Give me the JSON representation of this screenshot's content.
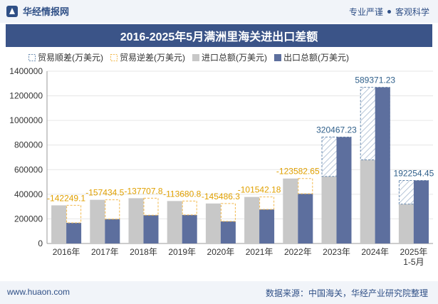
{
  "header": {
    "brand": "华经情报网",
    "tag1": "专业严谨",
    "tag2": "客观科学"
  },
  "colors": {
    "import": "#c8c8c8",
    "export": "#5d6f9e",
    "surplus_border": "#6a8bb0",
    "deficit_border": "#f2b84b",
    "title_bg": "#3b5488"
  },
  "footer": {
    "website": "www.huaon.com",
    "source": "数据来源：中国海关，华经产业研究院整理"
  },
  "chart_data": {
    "type": "bar",
    "title": "2016-2025年5月满洲里海关进出口差额",
    "categories": [
      "2016年",
      "2017年",
      "2018年",
      "2019年",
      "2020年",
      "2021年",
      "2022年",
      "2023年",
      "2024年",
      "2025年\n1-5月"
    ],
    "series": [
      {
        "name": "贸易顺差(万美元)",
        "values": [
          null,
          null,
          null,
          null,
          null,
          null,
          null,
          320467.23,
          589371.23,
          192254.45
        ]
      },
      {
        "name": "贸易逆差(万美元)",
        "values": [
          -142249.1,
          -157434.5,
          -137707.8,
          -113680.8,
          -145486.3,
          -101542.18,
          -123582.65,
          null,
          null,
          null
        ]
      },
      {
        "name": "进口总额(万美元)",
        "values": [
          310000,
          355000,
          368000,
          345000,
          325000,
          378000,
          528000,
          545000,
          680000,
          320000
        ]
      },
      {
        "name": "出口总额(万美元)",
        "values": [
          168000,
          198000,
          230000,
          232000,
          180000,
          277000,
          404000,
          865000,
          1269000,
          512000
        ]
      }
    ],
    "data_labels": [
      "-142249.1",
      "-157434.5",
      "-137707.8",
      "-113680.8",
      "-145486.3",
      "-101542.18",
      "-123582.65",
      "320467.23",
      "589371.23",
      "192254.45"
    ],
    "yticks": [
      "0",
      "200000",
      "400000",
      "600000",
      "800000",
      "1000000",
      "1200000",
      "1400000"
    ],
    "ylim": [
      0,
      1400000
    ],
    "legend_position": "top"
  }
}
